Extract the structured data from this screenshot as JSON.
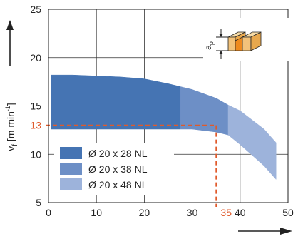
{
  "chart_data": {
    "type": "area",
    "xlabel": "",
    "ylabel": {
      "main": "v",
      "sub": "f",
      "unit_prefix": " [m min",
      "unit_exp": "-1",
      "unit_suffix": "]"
    },
    "xlim": [
      0,
      50
    ],
    "ylim": [
      5,
      25
    ],
    "x_ticks": [
      0,
      10,
      20,
      30,
      40,
      50
    ],
    "y_ticks": [
      5,
      10,
      15,
      20,
      25
    ],
    "grid": true,
    "legend_position": "bottom-left",
    "series": [
      {
        "name": "Ø 20 x 28 NL",
        "color": "#4574b3",
        "band": {
          "x": [
            0.5,
            5,
            10,
            15,
            20,
            25,
            27.5
          ],
          "upper": [
            18.2,
            18.2,
            18.1,
            18.0,
            17.8,
            17.3,
            17.0
          ],
          "lower": [
            12.6,
            12.6,
            12.6,
            12.6,
            12.6,
            12.6,
            12.6
          ]
        }
      },
      {
        "name": "Ø 20 x 38 NL",
        "color": "#6d8fc6",
        "band": {
          "x": [
            27.5,
            30,
            35,
            37.5
          ],
          "upper": [
            17.0,
            16.7,
            15.8,
            15.1
          ],
          "lower": [
            12.6,
            12.6,
            12.3,
            12.0
          ]
        }
      },
      {
        "name": "Ø 20 x 48 NL",
        "color": "#9db3db",
        "band": {
          "x": [
            37.5,
            40,
            45,
            47.5
          ],
          "upper": [
            15.1,
            14.5,
            12.6,
            11.2
          ],
          "lower": [
            12.0,
            11.0,
            8.8,
            7.4
          ]
        }
      }
    ],
    "reference": {
      "x": 35,
      "y": 13,
      "x_label": "35",
      "y_label": "13",
      "color": "#e05a2b"
    },
    "inset": {
      "label_main": "a",
      "label_sub": "p"
    }
  }
}
